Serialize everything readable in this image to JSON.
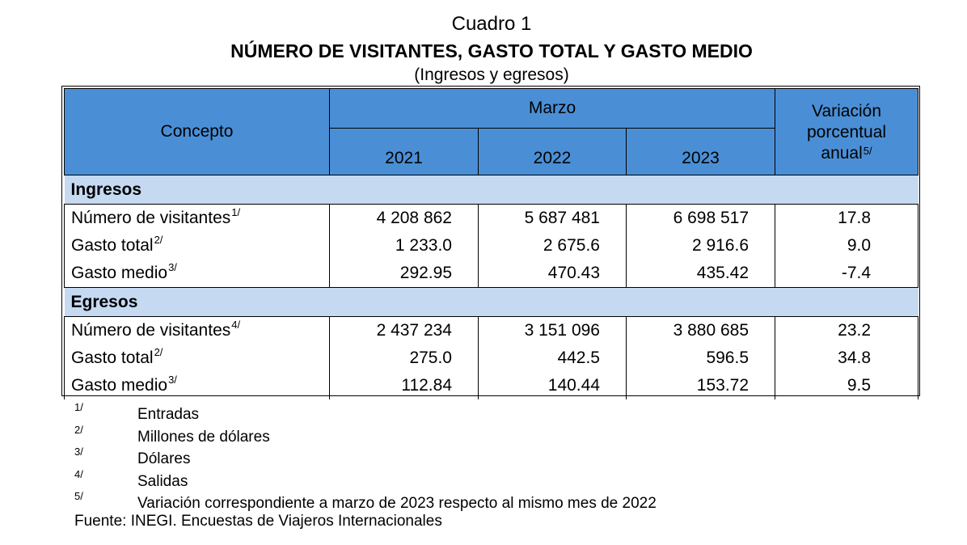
{
  "title": "Cuadro 1",
  "heading": "NÚMERO DE VISITANTES, GASTO TOTAL Y GASTO MEDIO",
  "subheading": "(Ingresos y egresos)",
  "header": {
    "concepto": "Concepto",
    "period": "Marzo",
    "years": [
      "2021",
      "2022",
      "2023"
    ],
    "variation_lines": [
      "Variación",
      "porcentual",
      "anual"
    ],
    "variation_sup": "5/"
  },
  "sections": [
    {
      "name": "Ingresos",
      "rows": [
        {
          "label": "Número de visitantes",
          "sup": "1/",
          "values": [
            "4 208 862",
            "5 687 481",
            "6 698 517"
          ],
          "variation": "17.8"
        },
        {
          "label": "Gasto total",
          "sup": "2/",
          "values": [
            "1 233.0",
            "2 675.6",
            "2 916.6"
          ],
          "variation": "9.0"
        },
        {
          "label": "Gasto medio",
          "sup": "3/",
          "values": [
            "292.95",
            "470.43",
            "435.42"
          ],
          "variation": "-7.4"
        }
      ]
    },
    {
      "name": "Egresos",
      "rows": [
        {
          "label": "Número de visitantes",
          "sup": "4/",
          "values": [
            "2 437 234",
            "3 151 096",
            "3 880 685"
          ],
          "variation": "23.2"
        },
        {
          "label": "Gasto total",
          "sup": "2/",
          "values": [
            "275.0",
            "442.5",
            "596.5"
          ],
          "variation": "34.8"
        },
        {
          "label": "Gasto medio",
          "sup": "3/",
          "values": [
            "112.84",
            "140.44",
            "153.72"
          ],
          "variation": "9.5"
        }
      ]
    }
  ],
  "notes": [
    {
      "mark": "1/",
      "text": "Entradas"
    },
    {
      "mark": "2/",
      "text": "Millones de dólares"
    },
    {
      "mark": "3/",
      "text": "Dólares"
    },
    {
      "mark": "4/",
      "text": "Salidas"
    },
    {
      "mark": "5/",
      "text": "Variación correspondiente a marzo de 2023 respecto al mismo mes de 2022"
    }
  ],
  "source": "Fuente: INEGI. Encuestas de Viajeros Internacionales",
  "colors": {
    "header_bg": "#4a8fd6",
    "section_bg": "#c5d9f1"
  }
}
